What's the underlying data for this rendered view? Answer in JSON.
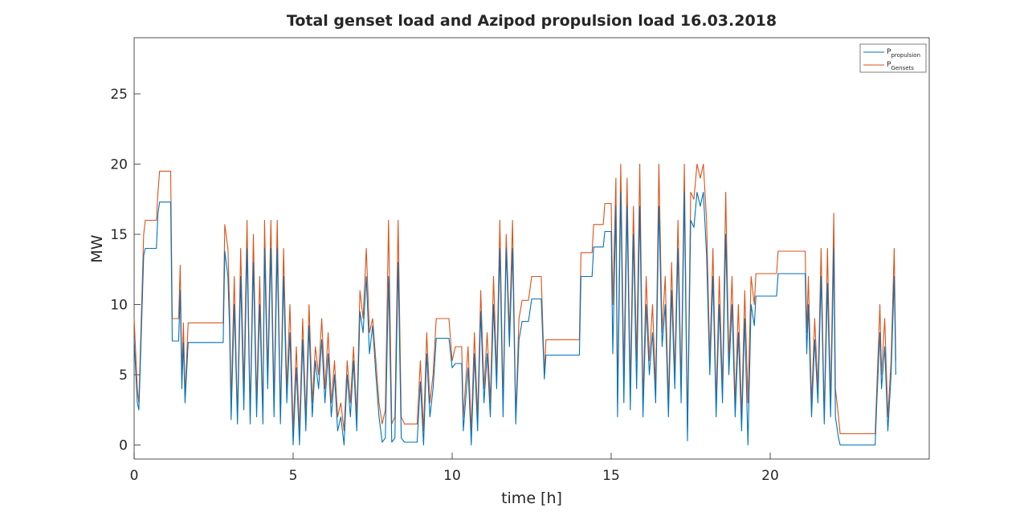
{
  "chart_data": {
    "type": "line",
    "title": "Total genset load and Azipod propulsion load 16.03.2018",
    "xlabel": "time [h]",
    "ylabel": "MW",
    "xlim": [
      0,
      25
    ],
    "ylim": [
      -1,
      29
    ],
    "xticks": [
      0,
      5,
      10,
      15,
      20
    ],
    "yticks": [
      0,
      5,
      10,
      15,
      20,
      25
    ],
    "legend": "upper right",
    "x": [
      0,
      0.1,
      0.15,
      0.2,
      0.3,
      0.35,
      0.7,
      0.75,
      0.8,
      1.15,
      1.2,
      1.4,
      1.45,
      1.5,
      1.55,
      1.6,
      1.7,
      2.8,
      2.85,
      2.95,
      3.0,
      3.05,
      3.15,
      3.25,
      3.35,
      3.45,
      3.55,
      3.65,
      3.75,
      3.85,
      3.95,
      4.05,
      4.1,
      4.2,
      4.3,
      4.4,
      4.5,
      4.6,
      4.7,
      4.8,
      4.9,
      5.0,
      5.1,
      5.2,
      5.3,
      5.4,
      5.5,
      5.6,
      5.7,
      5.8,
      5.9,
      6.0,
      6.1,
      6.2,
      6.3,
      6.4,
      6.5,
      6.6,
      6.7,
      6.8,
      6.9,
      7.0,
      7.1,
      7.2,
      7.3,
      7.4,
      7.5,
      7.6,
      7.7,
      7.8,
      7.9,
      8.0,
      8.1,
      8.2,
      8.3,
      8.4,
      8.5,
      8.9,
      9.0,
      9.1,
      9.2,
      9.3,
      9.4,
      9.5,
      9.9,
      10.0,
      10.1,
      10.3,
      10.35,
      10.5,
      10.6,
      10.7,
      10.8,
      10.9,
      11.0,
      11.1,
      11.2,
      11.3,
      11.4,
      11.5,
      11.6,
      11.7,
      11.8,
      11.9,
      12.0,
      12.1,
      12.2,
      12.4,
      12.5,
      12.8,
      12.9,
      12.95,
      14.0,
      14.05,
      14.4,
      14.45,
      14.75,
      14.8,
      15.0,
      15.05,
      15.15,
      15.2,
      15.3,
      15.4,
      15.5,
      15.6,
      15.7,
      15.8,
      15.9,
      16.0,
      16.1,
      16.2,
      16.3,
      16.4,
      16.5,
      16.6,
      16.7,
      16.8,
      16.9,
      17.0,
      17.1,
      17.2,
      17.3,
      17.4,
      17.5,
      17.6,
      17.7,
      17.8,
      17.9,
      18.0,
      18.1,
      18.2,
      18.3,
      18.4,
      18.5,
      18.6,
      18.7,
      18.8,
      18.9,
      19.0,
      19.1,
      19.2,
      19.3,
      19.4,
      19.5,
      19.55,
      20.2,
      20.25,
      21.1,
      21.15,
      21.2,
      21.3,
      21.4,
      21.5,
      21.6,
      21.7,
      21.8,
      21.9,
      22.0,
      22.05,
      22.15,
      22.2,
      23.3,
      23.35,
      23.45,
      23.5,
      23.6,
      23.7,
      23.8,
      23.9,
      23.95
    ],
    "series": [
      {
        "name": "P",
        "subscript": "propulsion",
        "color": "#0072bd",
        "values": [
          7.5,
          3,
          2.5,
          6,
          13.5,
          14,
          14,
          16.5,
          17.3,
          17.3,
          7.4,
          7.4,
          11,
          4,
          7.3,
          3,
          7.3,
          7.3,
          13.8,
          12,
          8.4,
          1.8,
          10,
          1.5,
          12,
          2.5,
          14,
          1.5,
          13,
          2,
          10,
          1.5,
          14,
          4,
          14,
          2,
          14,
          1.5,
          12,
          3,
          8,
          0,
          5.5,
          0,
          7.5,
          1,
          8.5,
          2,
          6,
          4,
          7.5,
          3,
          6.5,
          2,
          5,
          1,
          2,
          0,
          5,
          2,
          6,
          1,
          9.5,
          8,
          12,
          6.5,
          8.5,
          5,
          2,
          0.2,
          0.5,
          12,
          0.2,
          0.5,
          13,
          0.5,
          0.2,
          0.2,
          4.5,
          0,
          6.5,
          2,
          4,
          7.6,
          7.6,
          5.5,
          5.8,
          5.8,
          1,
          5.5,
          0,
          6.5,
          1,
          9.5,
          3,
          6.5,
          2,
          10,
          4,
          14,
          2,
          14,
          7,
          14,
          1.5,
          7.5,
          8.8,
          8.8,
          10.4,
          10.4,
          4.7,
          6.4,
          6.4,
          12,
          12,
          14.1,
          14.1,
          15.2,
          15.2,
          6.5,
          17,
          2,
          18,
          3,
          17,
          2.5,
          15,
          4,
          17,
          2,
          10,
          5,
          8,
          3,
          17,
          7,
          10,
          2,
          11,
          4,
          14,
          3,
          18,
          0.3,
          16,
          15.5,
          18,
          17,
          18,
          13.5,
          5,
          12,
          2,
          10,
          3,
          15,
          5,
          10,
          2,
          8,
          1,
          9,
          0,
          10,
          8.5,
          10.6,
          10.6,
          12.2,
          12.2,
          6.5,
          10,
          2,
          7.5,
          3,
          12,
          1.5,
          11.5,
          2,
          14,
          2,
          0.5,
          0,
          0,
          3,
          8,
          4,
          7,
          1,
          5,
          12,
          5
        ]
      },
      {
        "name": "P",
        "subscript": "Gensets",
        "color": "#d95319",
        "values": [
          9,
          4,
          3,
          7,
          15,
          16,
          16,
          18,
          19.5,
          19.5,
          9,
          9,
          12.8,
          5,
          8.7,
          3.5,
          8.7,
          8.7,
          15.7,
          14,
          10,
          3,
          12,
          2,
          14,
          4,
          16,
          2,
          15,
          3,
          12,
          2,
          16,
          5,
          16,
          3,
          16,
          2,
          14,
          4,
          10,
          1,
          7,
          1,
          9,
          2,
          10,
          3,
          7,
          5,
          9,
          4,
          8,
          3,
          6,
          2,
          3,
          1,
          6,
          3,
          7,
          2,
          11,
          9,
          14,
          8,
          9,
          6,
          3,
          1.5,
          2.5,
          16,
          1.5,
          2,
          16,
          2,
          1.5,
          1.5,
          6,
          1,
          8,
          3,
          5,
          9,
          9,
          6,
          7,
          7,
          2,
          7,
          1,
          8,
          2,
          11,
          4,
          8,
          3,
          12,
          5,
          16,
          3,
          15,
          8,
          16,
          2,
          9,
          10.3,
          10.3,
          12,
          12,
          5,
          7.5,
          7.5,
          13.7,
          13.7,
          15.7,
          15.7,
          17.2,
          17.2,
          10,
          19,
          3,
          20,
          5,
          19,
          4,
          17,
          6,
          20,
          3,
          12,
          6,
          10,
          4,
          20,
          8,
          12,
          3,
          13,
          5,
          16,
          4,
          20,
          1,
          18,
          17.5,
          20,
          19,
          20,
          16,
          6,
          14,
          3,
          12,
          4,
          18,
          6,
          12,
          3,
          10,
          2,
          11,
          3,
          12,
          10,
          12.2,
          12.2,
          13.8,
          13.8,
          8,
          12,
          3,
          9,
          4,
          14,
          2,
          14,
          3,
          16.5,
          4,
          2,
          0.8,
          0.8,
          4,
          10,
          5,
          9,
          2,
          6,
          14,
          6
        ]
      }
    ]
  }
}
